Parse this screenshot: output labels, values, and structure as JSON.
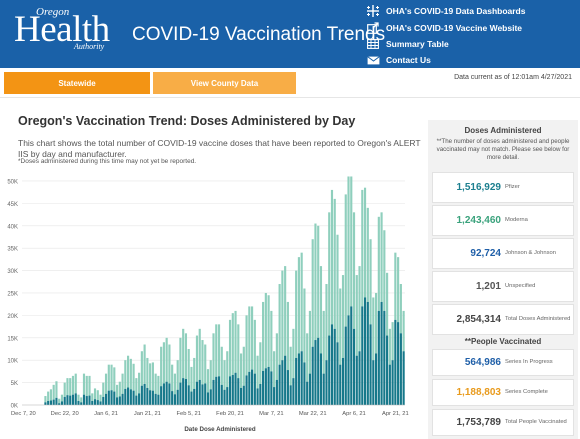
{
  "header": {
    "logo": {
      "line1": "Oregon",
      "line2": "Health",
      "line3": "Authority"
    },
    "title": "COVID-19 Vaccination Trends",
    "links": [
      {
        "label": "OHA's COVID-19 Data Dashboards",
        "icon": "tableau-icon"
      },
      {
        "label": "OHA's COVID-19 Vaccine Website",
        "icon": "external-link-icon"
      },
      {
        "label": "Summary Table",
        "icon": "table-icon"
      },
      {
        "label": "Contact Us",
        "icon": "mail-icon"
      }
    ]
  },
  "tabs": [
    {
      "label": "Statewide",
      "active": true
    },
    {
      "label": "View County Data",
      "active": false
    }
  ],
  "as_of": "Data current as of 12:01am 4/27/2021",
  "main": {
    "title": "Oregon's Vaccination Trend: Doses Administered by Day",
    "description": "This chart shows the total number of COVID-19 vaccine doses that have been reported to Oregon's ALERT IIS by day and manufacturer.",
    "note": "*Doses administered during this time may not yet be reported."
  },
  "chart_data": {
    "type": "bar",
    "stacked": true,
    "xlabel": "Date Dose Administered",
    "ylabel": "",
    "ylim": [
      0,
      52000
    ],
    "y_ticks": [
      "0K",
      "5K",
      "10K",
      "15K",
      "20K",
      "25K",
      "30K",
      "35K",
      "40K",
      "45K",
      "50K"
    ],
    "x_ticks": [
      "Dec 7, 20",
      "Dec 22, 20",
      "Jan 6, 21",
      "Jan 21, 21",
      "Feb 5, 21",
      "Feb 20, 21",
      "Mar 7, 21",
      "Mar 22, 21",
      "Apr 6, 21",
      "Apr 21, 21"
    ],
    "x_tick_index": [
      0,
      15,
      30,
      45,
      60,
      75,
      90,
      105,
      120,
      135
    ],
    "categories_start": "Dec 7, 20",
    "colors": {
      "dark": "#16788a",
      "light": "#8fcfbd"
    },
    "series": [
      {
        "values": [
          0,
          0,
          0,
          0,
          0,
          0,
          0,
          0,
          600,
          900,
          1000,
          1200,
          1600,
          400,
          800,
          1800,
          2200,
          2100,
          2300,
          2600,
          900,
          600,
          2300,
          2000,
          2100,
          900,
          1300,
          1100,
          800,
          1800,
          2500,
          3200,
          3300,
          3000,
          1700,
          1900,
          2500,
          3600,
          3900,
          3500,
          3200,
          2100,
          2600,
          4300,
          4700,
          3800,
          3300,
          3200,
          2500,
          2300,
          4200,
          4800,
          5200,
          4800,
          3100,
          2400,
          3400,
          5000,
          6000,
          5800,
          4400,
          3000,
          3600,
          5200,
          5600,
          4600,
          4800,
          2800,
          3500,
          5600,
          6300,
          6400,
          4500,
          3400,
          4000,
          6400,
          6700,
          7200,
          6000,
          3800,
          4300,
          6600,
          7400,
          7900,
          7000,
          3700,
          4700,
          7600,
          8200,
          8500,
          7500,
          4000,
          5600,
          9000,
          10000,
          11000,
          7800,
          4400,
          6000,
          10500,
          11500,
          12000,
          9500,
          5200,
          7000,
          13000,
          14500,
          15000,
          11500,
          7000,
          10000,
          15500,
          18000,
          17000,
          14000,
          9000,
          10500,
          17500,
          20000,
          22000,
          17000,
          11000,
          12000,
          22000,
          24000,
          23000,
          18000,
          10000,
          11500,
          21000,
          23000,
          21000,
          15500,
          9000,
          10000,
          19000,
          18500,
          16000,
          12000
        ]
      },
      {
        "values": [
          0,
          0,
          0,
          0,
          0,
          0,
          0,
          0,
          1400,
          2100,
          2500,
          3300,
          3700,
          1000,
          1500,
          3200,
          3800,
          3900,
          4200,
          4400,
          1400,
          1100,
          4700,
          4500,
          4400,
          1700,
          2400,
          2200,
          1500,
          3200,
          4500,
          5800,
          5700,
          5400,
          2800,
          3300,
          4500,
          6400,
          7100,
          6800,
          6000,
          3900,
          4600,
          7700,
          8800,
          6700,
          6000,
          6300,
          4500,
          4200,
          8800,
          9200,
          9800,
          8700,
          5900,
          4600,
          6600,
          10000,
          11000,
          10200,
          8100,
          5500,
          6900,
          10300,
          11400,
          9900,
          8700,
          5200,
          6500,
          10400,
          11700,
          11600,
          8500,
          6600,
          8000,
          12600,
          13800,
          13800,
          12000,
          7700,
          8700,
          13400,
          14600,
          14100,
          12000,
          7300,
          9300,
          15400,
          16800,
          16000,
          13500,
          8000,
          10400,
          18000,
          20000,
          20000,
          15200,
          8600,
          11000,
          19500,
          21500,
          22000,
          16500,
          10800,
          14000,
          24000,
          26000,
          25000,
          19500,
          14000,
          17000,
          27500,
          30000,
          29000,
          24000,
          17000,
          18500,
          29500,
          31000,
          29000,
          26000,
          18000,
          19000,
          26000,
          24500,
          21000,
          19000,
          14000,
          13500,
          21000,
          20000,
          18000,
          14000,
          8000,
          8500,
          15000,
          14500,
          11000,
          9000
        ]
      }
    ]
  },
  "panel": {
    "doses_heading": "Doses Administered",
    "doses_note": "**The number of doses administered and people vaccinated may not match. Please see below for more detail.",
    "doses": [
      {
        "value": "1,516,929",
        "label": "Pfizer",
        "color": "#1c7f8f"
      },
      {
        "value": "1,243,460",
        "label": "Moderna",
        "color": "#3aa27c"
      },
      {
        "value": "92,724",
        "label": "Johnson & Johnson",
        "color": "#1f5fa8"
      },
      {
        "value": "1,201",
        "label": "Unspecified",
        "color": "#555555"
      },
      {
        "value": "2,854,314",
        "label": "Total Doses Administered",
        "color": "#444444"
      }
    ],
    "people_heading": "**People Vaccinated",
    "people": [
      {
        "value": "564,986",
        "label": "Series In Progress",
        "color": "#1f5fa8"
      },
      {
        "value": "1,188,803",
        "label": "Series Complete",
        "color": "#e89a1c"
      },
      {
        "value": "1,753,789",
        "label": "Total People Vaccinated",
        "color": "#444444"
      }
    ]
  }
}
